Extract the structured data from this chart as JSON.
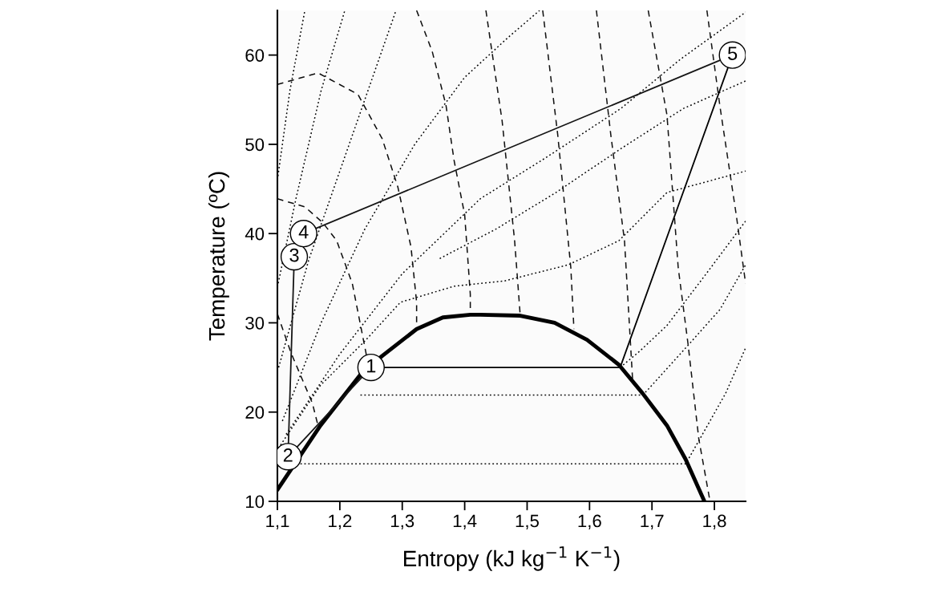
{
  "chart_data": {
    "type": "line",
    "xlabel": "Entropy (kJ kg$^{−1}$ K$^{−1}$)",
    "ylabel": "Temperature (ºC)",
    "xlim": [
      1.1,
      1.85
    ],
    "ylim": [
      10,
      65
    ],
    "xticks": [
      {
        "value": 1.1,
        "label": "1,1"
      },
      {
        "value": 1.2,
        "label": "1,2"
      },
      {
        "value": 1.3,
        "label": "1,3"
      },
      {
        "value": 1.4,
        "label": "1,4"
      },
      {
        "value": 1.5,
        "label": "1,5"
      },
      {
        "value": 1.6,
        "label": "1,6"
      },
      {
        "value": 1.7,
        "label": "1,7"
      },
      {
        "value": 1.8,
        "label": "1,8"
      }
    ],
    "yticks": [
      10,
      20,
      30,
      40,
      50,
      60
    ],
    "grid": false,
    "series": [
      {
        "color": "#000000",
        "line_style": "solid",
        "x": [
          1.1,
          1.169,
          1.233,
          1.268,
          1.323,
          1.365,
          1.409,
          1.425,
          1.489,
          1.544,
          1.596,
          1.647,
          1.685,
          1.724,
          1.754,
          1.784
        ],
        "values": [
          11.3,
          18.5,
          24.2,
          26.3,
          29.3,
          30.6,
          30.9,
          30.9,
          30.8,
          30.0,
          28.1,
          25.3,
          22.1,
          18.5,
          14.7,
          10
        ]
      },
      {
        "color": "#010101",
        "line_style": "solid",
        "x": [
          1.25,
          1.649,
          1.829
        ],
        "values": [
          25,
          25,
          60
        ]
      },
      {
        "color": "#151515",
        "line_style": "solid",
        "x": [
          1.142,
          1.829
        ],
        "values": [
          40,
          60
        ]
      },
      {
        "color": "#161616",
        "line_style": "solid",
        "x": [
          1.117,
          1.127
        ],
        "values": [
          15,
          37.4
        ]
      },
      {
        "color": "#171717",
        "line_style": "solid",
        "x": [
          1.117,
          1.25
        ],
        "values": [
          15,
          25
        ]
      },
      {
        "type": "scatter",
        "marker": "circle",
        "color": "#000000",
        "x": [
          1.25,
          1.117,
          1.127,
          1.142,
          1.829
        ],
        "values": [
          25,
          15,
          37.4,
          40,
          60
        ]
      },
      {
        "color": "#020202",
        "line_style": "dotted",
        "x": [
          1.1,
          1.12,
          1.144
        ],
        "values": [
          46,
          56,
          65
        ]
      },
      {
        "color": "#030303",
        "line_style": "dotted",
        "x": [
          1.1,
          1.13,
          1.17,
          1.208
        ],
        "values": [
          34,
          44,
          56,
          65
        ]
      },
      {
        "color": "#040404",
        "line_style": "dotted",
        "x": [
          1.102,
          1.15,
          1.21,
          1.25,
          1.29
        ],
        "values": [
          25,
          37,
          49,
          57,
          65
        ]
      },
      {
        "color": "#050505",
        "line_style": "dotted",
        "x": [
          1.108,
          1.17,
          1.24,
          1.32,
          1.4,
          1.47,
          1.52
        ],
        "values": [
          19,
          30,
          40.5,
          50,
          57.5,
          62,
          65
        ]
      },
      {
        "color": "#060606",
        "line_style": "dotted",
        "x": [
          1.114,
          1.2,
          1.3,
          1.425,
          1.53,
          1.65,
          1.745,
          1.85
        ],
        "values": [
          17.5,
          26.5,
          35.5,
          43.9,
          48.5,
          54,
          59.5,
          64.8
        ]
      },
      {
        "color": "#070707",
        "line_style": "dotted",
        "x": [
          1.36,
          1.45,
          1.544,
          1.65,
          1.75,
          1.85
        ],
        "values": [
          37.2,
          40.5,
          44.5,
          49.5,
          54,
          57.1
        ]
      },
      {
        "color": "#080808",
        "line_style": "dotted",
        "x": [
          1.105,
          1.169,
          1.242,
          1.297,
          1.383,
          1.464,
          1.566,
          1.647,
          1.724,
          1.85
        ],
        "values": [
          16.3,
          23,
          28.1,
          32.3,
          34.1,
          34.7,
          36.5,
          39.2,
          44.6,
          47
        ]
      },
      {
        "color": "#090909",
        "line_style": "dotted",
        "x": [
          1.649,
          1.68,
          1.724,
          1.788,
          1.85
        ],
        "values": [
          25,
          26.8,
          29.7,
          35.6,
          41.4
        ]
      },
      {
        "color": "#0a0a0a",
        "line_style": "dotted",
        "x": [
          1.233,
          1.685,
          1.692,
          1.758,
          1.809,
          1.85
        ],
        "values": [
          21.9,
          21.9,
          22.4,
          27.5,
          31.5,
          36.5
        ]
      },
      {
        "color": "#0b0b0b",
        "line_style": "dotted",
        "x": [
          1.118,
          1.754,
          1.78,
          1.818,
          1.85
        ],
        "values": [
          14.2,
          14.2,
          17.4,
          22.1,
          27.2
        ]
      },
      {
        "color": "#0c0c0c",
        "line_style": "dashed",
        "x": [
          1.1,
          1.165,
          1.229,
          1.268,
          1.293,
          1.314,
          1.323,
          1.323
        ],
        "values": [
          56.7,
          58.0,
          55.6,
          50.6,
          45.2,
          38.5,
          32.3,
          29.6
        ]
      },
      {
        "color": "#0d0d0d",
        "line_style": "dashed",
        "x": [
          1.1,
          1.144,
          1.173,
          1.195,
          1.22,
          1.242,
          1.245
        ],
        "values": [
          43.9,
          43.0,
          41.2,
          39.2,
          34.4,
          26.6,
          24.8
        ]
      },
      {
        "color": "#0e0e0e",
        "line_style": "dashed",
        "x": [
          1.1,
          1.122,
          1.156,
          1.165
        ],
        "values": [
          31,
          26.6,
          21,
          18.5
        ]
      },
      {
        "color": "#0f0f0f",
        "line_style": "dashed",
        "x": [
          1.323,
          1.348,
          1.37,
          1.383,
          1.4,
          1.409,
          1.409
        ],
        "values": [
          65,
          60.4,
          54.4,
          48.2,
          42.1,
          33.2,
          30.9
        ]
      },
      {
        "color": "#101010",
        "line_style": "dashed",
        "x": [
          1.434,
          1.46,
          1.48,
          1.489
        ],
        "values": [
          65,
          52.6,
          39.2,
          30.8
        ]
      },
      {
        "color": "#111111",
        "line_style": "dashed",
        "x": [
          1.525,
          1.549,
          1.57,
          1.575
        ],
        "values": [
          65,
          51.1,
          36.2,
          29.3
        ]
      },
      {
        "color": "#121212",
        "line_style": "dashed",
        "x": [
          1.611,
          1.634,
          1.656,
          1.669
        ],
        "values": [
          65,
          51.1,
          39.2,
          23.6
        ]
      },
      {
        "color": "#131313",
        "line_style": "dashed",
        "x": [
          1.694,
          1.724,
          1.742,
          1.758,
          1.775,
          1.793
        ],
        "values": [
          65,
          53.3,
          36.2,
          27.5,
          17,
          10
        ]
      },
      {
        "color": "#141414",
        "line_style": "dashed",
        "x": [
          1.788,
          1.809,
          1.835,
          1.85
        ],
        "values": [
          65,
          54.2,
          42.1,
          34.4
        ]
      }
    ],
    "annotations": [
      {
        "text": "1",
        "x": 1.25,
        "y": 25
      },
      {
        "text": "2",
        "x": 1.117,
        "y": 15
      },
      {
        "text": "3",
        "x": 1.127,
        "y": 37.4
      },
      {
        "text": "4",
        "x": 1.142,
        "y": 40
      },
      {
        "text": "5",
        "x": 1.829,
        "y": 60
      }
    ]
  }
}
